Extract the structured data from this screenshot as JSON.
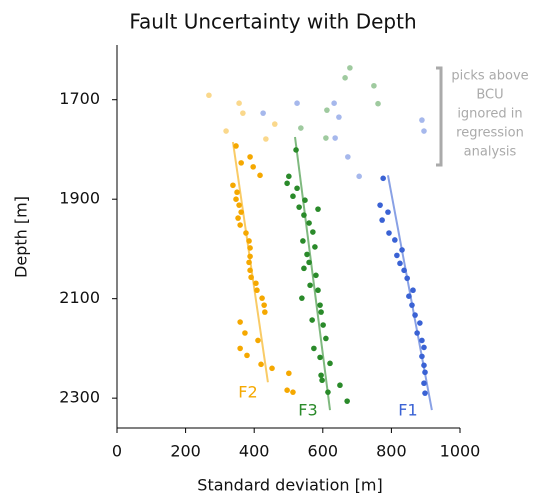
{
  "chart_data": {
    "type": "scatter",
    "title": "Fault Uncertainty with Depth",
    "x_label": "Standard deviation [m]",
    "y_label": "Depth [m]",
    "xlim": [
      0,
      1000
    ],
    "xticks": [
      0,
      200,
      400,
      600,
      800,
      1000
    ],
    "ylim": [
      2360,
      1590
    ],
    "yticks": [
      1700,
      1900,
      2100,
      2300
    ],
    "y_inverted": true,
    "annotation": [
      "picks above",
      "BCU",
      "ignored in",
      "regression",
      "analysis"
    ],
    "series": [
      {
        "name": "F2",
        "color": "#f5a800",
        "above_bcu_x": [
          268,
          356,
          367,
          460,
          318,
          434
        ],
        "above_bcu_values": [
          1691,
          1707,
          1727,
          1749,
          1763,
          1779
        ],
        "x": [
          347,
          388,
          362,
          397,
          417,
          338,
          350,
          347,
          356,
          362,
          353,
          359,
          376,
          385,
          388,
          388,
          385,
          388,
          391,
          405,
          408,
          423,
          429,
          431,
          359,
          373,
          411,
          359,
          379,
          420,
          452,
          501,
          496,
          513
        ],
        "values": [
          1793,
          1815,
          1827,
          1835,
          1852,
          1872,
          1886,
          1900,
          1912,
          1926,
          1938,
          1952,
          1968,
          1984,
          1998,
          2015,
          2027,
          2043,
          2057,
          2069,
          2083,
          2099,
          2113,
          2127,
          2147,
          2169,
          2184,
          2200,
          2214,
          2232,
          2240,
          2250,
          2284,
          2288
        ],
        "fit_x": [
          338,
          440
        ],
        "fit_values": [
          1785,
          2268
        ]
      },
      {
        "name": "F3",
        "color": "#2a8a2a",
        "above_bcu_x": [
          679,
          665,
          749,
          761,
          612,
          536,
          609
        ],
        "above_bcu_values": [
          1636,
          1656,
          1672,
          1708,
          1721,
          1757,
          1777
        ],
        "x": [
          522,
          501,
          496,
          525,
          513,
          548,
          531,
          586,
          545,
          560,
          571,
          542,
          577,
          554,
          560,
          545,
          580,
          563,
          586,
          539,
          592,
          595,
          569,
          601,
          609,
          574,
          592,
          621,
          595,
          598,
          650,
          615,
          671
        ],
        "values": [
          1801,
          1854,
          1868,
          1878,
          1894,
          1902,
          1916,
          1920,
          1932,
          1948,
          1966,
          1984,
          1996,
          2011,
          2027,
          2039,
          2053,
          2073,
          2083,
          2099,
          2113,
          2127,
          2143,
          2153,
          2180,
          2200,
          2218,
          2230,
          2254,
          2264,
          2274,
          2288,
          2306
        ],
        "fit_x": [
          519,
          621
        ],
        "fit_values": [
          1775,
          2324
        ]
      },
      {
        "name": "F1",
        "color": "#3a62d4",
        "above_bcu_x": [
          426,
          525,
          633,
          647,
          636,
          673,
          706,
          889,
          895
        ],
        "above_bcu_values": [
          1727,
          1707,
          1707,
          1735,
          1777,
          1815,
          1854,
          1741,
          1763
        ],
        "x": [
          776,
          767,
          790,
          773,
          793,
          810,
          831,
          816,
          825,
          837,
          846,
          863,
          851,
          860,
          869,
          883,
          875,
          889,
          895,
          889,
          895,
          898,
          895,
          898
        ],
        "values": [
          1858,
          1912,
          1926,
          1942,
          1968,
          1982,
          2002,
          2013,
          2029,
          2043,
          2059,
          2083,
          2095,
          2113,
          2133,
          2149,
          2169,
          2184,
          2198,
          2216,
          2234,
          2248,
          2270,
          2290
        ],
        "fit_x": [
          790,
          918
        ],
        "fit_values": [
          1852,
          2324
        ]
      }
    ]
  }
}
